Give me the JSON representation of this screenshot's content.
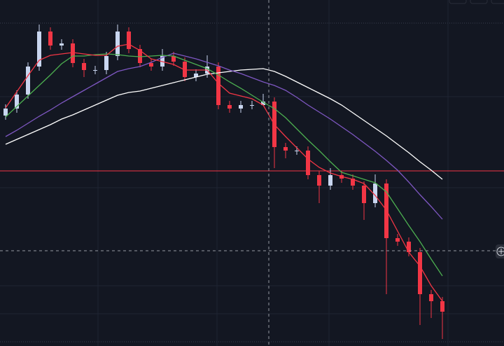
{
  "chart_data": {
    "type": "candlestick",
    "ylim": [
      0,
      494
    ],
    "up_color": "#c9d6f0",
    "down_color": "#f23645",
    "open": [
      329,
      339,
      359,
      399,
      449,
      429,
      432,
      404,
      394,
      394,
      414,
      449,
      424,
      404,
      399,
      414,
      406,
      384,
      389,
      399,
      344,
      339,
      344,
      344,
      349,
      284,
      279,
      279,
      244,
      229,
      244,
      239,
      229,
      204,
      232,
      154,
      149,
      134,
      74,
      64
    ],
    "high": [
      345,
      365,
      405,
      459,
      455,
      438,
      438,
      410,
      400,
      420,
      459,
      455,
      430,
      410,
      424,
      420,
      412,
      395,
      415,
      405,
      350,
      350,
      350,
      360,
      355,
      290,
      285,
      285,
      250,
      254,
      250,
      245,
      235,
      245,
      238,
      160,
      155,
      140,
      80,
      70
    ],
    "low": [
      323,
      333,
      353,
      393,
      423,
      423,
      398,
      384,
      388,
      388,
      408,
      418,
      398,
      393,
      393,
      400,
      378,
      378,
      383,
      338,
      333,
      333,
      338,
      343,
      254,
      268,
      273,
      238,
      204,
      223,
      233,
      223,
      180,
      198,
      74,
      143,
      128,
      30,
      40,
      10
    ],
    "close": [
      339,
      359,
      399,
      449,
      429,
      432,
      404,
      394,
      394,
      414,
      449,
      424,
      404,
      399,
      414,
      406,
      384,
      389,
      399,
      344,
      339,
      344,
      344,
      349,
      284,
      279,
      279,
      244,
      229,
      244,
      239,
      229,
      204,
      232,
      154,
      149,
      134,
      74,
      64,
      49
    ],
    "lines": [
      {
        "color": "#ffffff",
        "values": [
          288,
          295,
          302,
          309,
          316,
          324,
          330,
          337,
          344,
          351,
          358,
          362,
          364,
          368,
          372,
          376,
          380,
          384,
          388,
          390,
          392,
          394,
          395,
          396,
          392,
          385,
          377,
          369,
          361,
          353,
          344,
          333,
          322,
          311,
          300,
          288,
          276,
          263,
          251,
          238
        ]
      },
      {
        "color": "#7e57c2",
        "values": [
          299,
          308,
          318,
          328,
          337,
          347,
          356,
          365,
          374,
          383,
          392,
          396,
          399,
          405,
          412,
          418,
          414,
          410,
          405,
          400,
          394,
          389,
          383,
          377,
          372,
          365,
          355,
          344,
          334,
          324,
          313,
          302,
          290,
          278,
          265,
          251,
          234,
          216,
          199,
          181
        ]
      },
      {
        "color": "#4caf50",
        "values": [
          327,
          342,
          357,
          372,
          387,
          403,
          414,
          414,
          416,
          417,
          416,
          414,
          413,
          414,
          415,
          414,
          408,
          402,
          396,
          387,
          377,
          368,
          358,
          348,
          339,
          326,
          310,
          294,
          279,
          263,
          248,
          243,
          238,
          233,
          220,
          196,
          172,
          149,
          124,
          100
        ]
      },
      {
        "color": "#f23645",
        "values": [
          340,
          363,
          386,
          408,
          415,
          417,
          419,
          417,
          415,
          415,
          428,
          431,
          422,
          410,
          406,
          402,
          394,
          394,
          394,
          375,
          361,
          357,
          353,
          344,
          316,
          299,
          283,
          267,
          255,
          247,
          242,
          238,
          232,
          215,
          194,
          164,
          134,
          114,
          86,
          64
        ]
      }
    ],
    "hline": {
      "value": 250,
      "color": "#f23645"
    }
  }
}
